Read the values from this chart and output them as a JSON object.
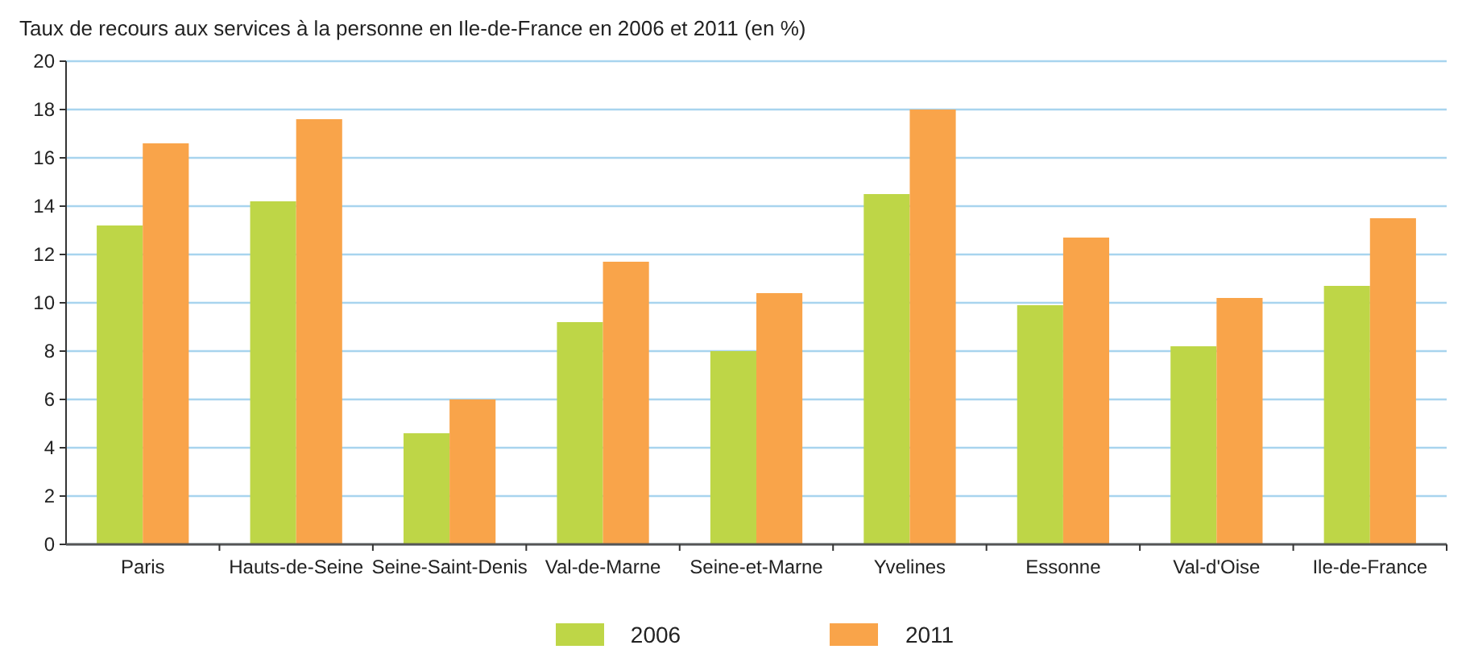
{
  "chart_data": {
    "type": "bar",
    "title": "Taux de recours aux services à la personne en Ile-de-France en 2006 et 2011 (en %)",
    "categories": [
      "Paris",
      "Hauts-de-Seine",
      "Seine-Saint-Denis",
      "Val-de-Marne",
      "Seine-et-Marne",
      "Yvelines",
      "Essonne",
      "Val-d'Oise",
      "Ile-de-France"
    ],
    "series": [
      {
        "name": "2006",
        "color": "#bed647",
        "values": [
          13.2,
          14.2,
          4.6,
          9.2,
          8.0,
          14.5,
          9.9,
          8.2,
          10.7
        ]
      },
      {
        "name": "2011",
        "color": "#f9a44a",
        "values": [
          16.6,
          17.6,
          6.0,
          11.7,
          10.4,
          18.0,
          12.7,
          10.2,
          13.5
        ]
      }
    ],
    "ylim": [
      0,
      20
    ],
    "yticks": [
      0,
      2,
      4,
      6,
      8,
      10,
      12,
      14,
      16,
      18,
      20
    ],
    "grid": "y",
    "legend": "bottom"
  }
}
